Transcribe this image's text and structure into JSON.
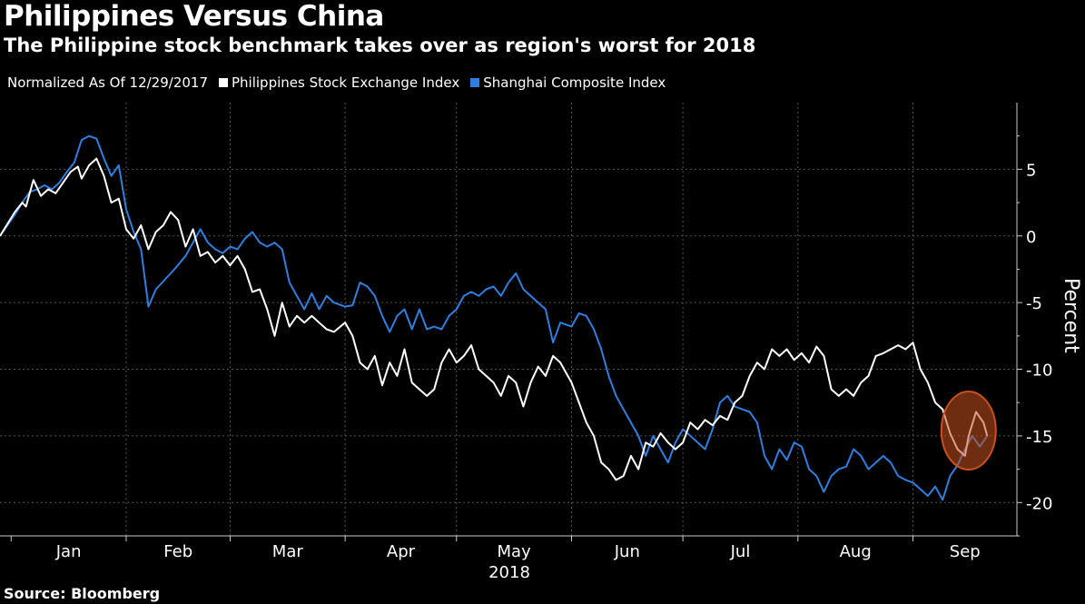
{
  "header": {
    "title": "Philippines Versus China",
    "subtitle": "The Philippine stock benchmark takes over as region's worst for 2018"
  },
  "legend": {
    "note": "Normalized As Of 12/29/2017"
  },
  "footer": {
    "source": "Source: Bloomberg"
  },
  "colors": {
    "background": "#000000",
    "philippines": "#ffffff",
    "shanghai": "#2f7fe0",
    "highlight": "#c8501f"
  },
  "chart_data": {
    "type": "line",
    "ylabel": "Percent",
    "xlabel": "2018",
    "ylim": [
      -22.5,
      10
    ],
    "yticks": [
      5,
      0,
      -5,
      -10,
      -15,
      -20
    ],
    "ytick_labels": [
      "5",
      "0",
      "-5",
      "-10",
      "-15",
      "-20"
    ],
    "xlim": [
      "2017-12-29",
      "2018-09-29"
    ],
    "month_labels": [
      "Jan",
      "Feb",
      "Mar",
      "Apr",
      "May",
      "Jun",
      "Jul",
      "Aug",
      "Sep"
    ],
    "month_starts": [
      "2018-01-01",
      "2018-02-01",
      "2018-03-01",
      "2018-04-01",
      "2018-05-01",
      "2018-06-01",
      "2018-07-01",
      "2018-08-01",
      "2018-09-01"
    ],
    "grid": true,
    "legend_position": "top-left",
    "series": [
      {
        "name": "Philippines Stock Exchange Index",
        "points": [
          [
            "2017-12-29",
            0
          ],
          [
            "2018-01-02",
            1.8
          ],
          [
            "2018-01-04",
            2.5
          ],
          [
            "2018-01-05",
            2.2
          ],
          [
            "2018-01-07",
            4.2
          ],
          [
            "2018-01-09",
            3.0
          ],
          [
            "2018-01-11",
            3.5
          ],
          [
            "2018-01-13",
            3.2
          ],
          [
            "2018-01-15",
            4.0
          ],
          [
            "2018-01-17",
            4.8
          ],
          [
            "2018-01-19",
            5.2
          ],
          [
            "2018-01-20",
            4.3
          ],
          [
            "2018-01-22",
            5.3
          ],
          [
            "2018-01-24",
            5.8
          ],
          [
            "2018-01-26",
            4.5
          ],
          [
            "2018-01-28",
            2.5
          ],
          [
            "2018-01-30",
            2.8
          ],
          [
            "2018-02-01",
            0.5
          ],
          [
            "2018-02-03",
            -0.2
          ],
          [
            "2018-02-05",
            0.8
          ],
          [
            "2018-02-07",
            -1.0
          ],
          [
            "2018-02-09",
            0.3
          ],
          [
            "2018-02-11",
            0.8
          ],
          [
            "2018-02-13",
            1.8
          ],
          [
            "2018-02-15",
            1.2
          ],
          [
            "2018-02-17",
            -0.8
          ],
          [
            "2018-02-19",
            0.5
          ],
          [
            "2018-02-21",
            -1.5
          ],
          [
            "2018-02-23",
            -1.2
          ],
          [
            "2018-02-25",
            -2.0
          ],
          [
            "2018-02-27",
            -1.5
          ],
          [
            "2018-03-01",
            -2.2
          ],
          [
            "2018-03-03",
            -1.5
          ],
          [
            "2018-03-05",
            -2.5
          ],
          [
            "2018-03-07",
            -4.2
          ],
          [
            "2018-03-09",
            -4.0
          ],
          [
            "2018-03-11",
            -5.5
          ],
          [
            "2018-03-13",
            -7.5
          ],
          [
            "2018-03-15",
            -5.0
          ],
          [
            "2018-03-17",
            -6.8
          ],
          [
            "2018-03-19",
            -6.0
          ],
          [
            "2018-03-21",
            -6.5
          ],
          [
            "2018-03-23",
            -6.0
          ],
          [
            "2018-03-25",
            -6.5
          ],
          [
            "2018-03-27",
            -7.0
          ],
          [
            "2018-03-29",
            -7.2
          ],
          [
            "2018-04-01",
            -6.5
          ],
          [
            "2018-04-03",
            -7.5
          ],
          [
            "2018-04-05",
            -9.5
          ],
          [
            "2018-04-07",
            -10.0
          ],
          [
            "2018-04-09",
            -9.0
          ],
          [
            "2018-04-11",
            -11.2
          ],
          [
            "2018-04-13",
            -9.5
          ],
          [
            "2018-04-15",
            -10.5
          ],
          [
            "2018-04-17",
            -8.5
          ],
          [
            "2018-04-19",
            -11.0
          ],
          [
            "2018-04-21",
            -11.5
          ],
          [
            "2018-04-23",
            -12.0
          ],
          [
            "2018-04-25",
            -11.5
          ],
          [
            "2018-04-27",
            -9.5
          ],
          [
            "2018-04-29",
            -8.5
          ],
          [
            "2018-05-01",
            -9.5
          ],
          [
            "2018-05-03",
            -9.0
          ],
          [
            "2018-05-05",
            -8.2
          ],
          [
            "2018-05-07",
            -10.0
          ],
          [
            "2018-05-09",
            -10.5
          ],
          [
            "2018-05-11",
            -11.0
          ],
          [
            "2018-05-13",
            -12.0
          ],
          [
            "2018-05-15",
            -10.5
          ],
          [
            "2018-05-17",
            -11.0
          ],
          [
            "2018-05-19",
            -12.8
          ],
          [
            "2018-05-21",
            -11.0
          ],
          [
            "2018-05-23",
            -9.8
          ],
          [
            "2018-05-25",
            -10.5
          ],
          [
            "2018-05-27",
            -9.0
          ],
          [
            "2018-05-29",
            -9.5
          ],
          [
            "2018-06-01",
            -11.0
          ],
          [
            "2018-06-03",
            -12.5
          ],
          [
            "2018-06-05",
            -14.0
          ],
          [
            "2018-06-07",
            -15.0
          ],
          [
            "2018-06-09",
            -17.0
          ],
          [
            "2018-06-11",
            -17.5
          ],
          [
            "2018-06-13",
            -18.3
          ],
          [
            "2018-06-15",
            -18.0
          ],
          [
            "2018-06-17",
            -16.5
          ],
          [
            "2018-06-19",
            -17.5
          ],
          [
            "2018-06-21",
            -15.5
          ],
          [
            "2018-06-23",
            -15.8
          ],
          [
            "2018-06-25",
            -14.8
          ],
          [
            "2018-06-27",
            -15.5
          ],
          [
            "2018-06-29",
            -16.0
          ],
          [
            "2018-07-01",
            -15.5
          ],
          [
            "2018-07-03",
            -14.0
          ],
          [
            "2018-07-05",
            -14.5
          ],
          [
            "2018-07-07",
            -13.8
          ],
          [
            "2018-07-09",
            -14.2
          ],
          [
            "2018-07-11",
            -13.5
          ],
          [
            "2018-07-13",
            -13.8
          ],
          [
            "2018-07-15",
            -12.5
          ],
          [
            "2018-07-17",
            -12.0
          ],
          [
            "2018-07-19",
            -10.5
          ],
          [
            "2018-07-21",
            -9.5
          ],
          [
            "2018-07-23",
            -10.0
          ],
          [
            "2018-07-25",
            -8.5
          ],
          [
            "2018-07-27",
            -9.0
          ],
          [
            "2018-07-29",
            -8.5
          ],
          [
            "2018-07-31",
            -9.3
          ],
          [
            "2018-08-02",
            -8.8
          ],
          [
            "2018-08-04",
            -9.5
          ],
          [
            "2018-08-06",
            -8.3
          ],
          [
            "2018-08-08",
            -9.0
          ],
          [
            "2018-08-10",
            -11.5
          ],
          [
            "2018-08-12",
            -12.0
          ],
          [
            "2018-08-14",
            -11.5
          ],
          [
            "2018-08-16",
            -12.0
          ],
          [
            "2018-08-18",
            -11.0
          ],
          [
            "2018-08-20",
            -10.5
          ],
          [
            "2018-08-22",
            -9.0
          ],
          [
            "2018-08-24",
            -8.8
          ],
          [
            "2018-08-26",
            -8.5
          ],
          [
            "2018-08-28",
            -8.2
          ],
          [
            "2018-08-30",
            -8.5
          ],
          [
            "2018-09-01",
            -8.0
          ],
          [
            "2018-09-03",
            -10.0
          ],
          [
            "2018-09-05",
            -11.0
          ],
          [
            "2018-09-07",
            -12.5
          ],
          [
            "2018-09-09",
            -13.0
          ],
          [
            "2018-09-11",
            -14.8
          ],
          [
            "2018-09-13",
            -16.0
          ],
          [
            "2018-09-15",
            -16.5
          ],
          [
            "2018-09-16",
            -15.0
          ],
          [
            "2018-09-18",
            -13.2
          ],
          [
            "2018-09-20",
            -14.0
          ],
          [
            "2018-09-21",
            -15.0
          ]
        ]
      },
      {
        "name": "Shanghai Composite Index",
        "points": [
          [
            "2017-12-29",
            0
          ],
          [
            "2018-01-02",
            1.6
          ],
          [
            "2018-01-04",
            2.5
          ],
          [
            "2018-01-06",
            3.3
          ],
          [
            "2018-01-08",
            3.5
          ],
          [
            "2018-01-10",
            3.8
          ],
          [
            "2018-01-12",
            3.5
          ],
          [
            "2018-01-14",
            4.0
          ],
          [
            "2018-01-16",
            4.8
          ],
          [
            "2018-01-18",
            5.5
          ],
          [
            "2018-01-20",
            7.2
          ],
          [
            "2018-01-22",
            7.5
          ],
          [
            "2018-01-24",
            7.3
          ],
          [
            "2018-01-26",
            5.8
          ],
          [
            "2018-01-28",
            4.5
          ],
          [
            "2018-01-30",
            5.3
          ],
          [
            "2018-02-01",
            2.0
          ],
          [
            "2018-02-03",
            0.3
          ],
          [
            "2018-02-05",
            -1.0
          ],
          [
            "2018-02-07",
            -5.3
          ],
          [
            "2018-02-09",
            -4.0
          ],
          [
            "2018-02-14",
            -2.5
          ],
          [
            "2018-02-17",
            -1.5
          ],
          [
            "2018-02-21",
            0.5
          ],
          [
            "2018-02-23",
            -0.5
          ],
          [
            "2018-02-25",
            -1.0
          ],
          [
            "2018-02-27",
            -1.3
          ],
          [
            "2018-03-01",
            -0.8
          ],
          [
            "2018-03-03",
            -1.0
          ],
          [
            "2018-03-05",
            -0.2
          ],
          [
            "2018-03-07",
            0.3
          ],
          [
            "2018-03-09",
            -0.5
          ],
          [
            "2018-03-11",
            -0.8
          ],
          [
            "2018-03-13",
            -0.5
          ],
          [
            "2018-03-15",
            -1.0
          ],
          [
            "2018-03-17",
            -3.5
          ],
          [
            "2018-03-19",
            -4.5
          ],
          [
            "2018-03-21",
            -5.5
          ],
          [
            "2018-03-23",
            -4.3
          ],
          [
            "2018-03-25",
            -5.5
          ],
          [
            "2018-03-27",
            -4.5
          ],
          [
            "2018-03-29",
            -5.0
          ],
          [
            "2018-04-01",
            -5.3
          ],
          [
            "2018-04-03",
            -5.2
          ],
          [
            "2018-04-05",
            -3.5
          ],
          [
            "2018-04-07",
            -3.8
          ],
          [
            "2018-04-09",
            -4.5
          ],
          [
            "2018-04-11",
            -6.0
          ],
          [
            "2018-04-13",
            -7.2
          ],
          [
            "2018-04-15",
            -6.0
          ],
          [
            "2018-04-17",
            -5.5
          ],
          [
            "2018-04-19",
            -7.0
          ],
          [
            "2018-04-21",
            -5.5
          ],
          [
            "2018-04-23",
            -7.0
          ],
          [
            "2018-04-25",
            -6.8
          ],
          [
            "2018-04-27",
            -7.0
          ],
          [
            "2018-04-29",
            -6.0
          ],
          [
            "2018-05-01",
            -5.5
          ],
          [
            "2018-05-03",
            -4.5
          ],
          [
            "2018-05-05",
            -4.2
          ],
          [
            "2018-05-07",
            -4.5
          ],
          [
            "2018-05-09",
            -4.0
          ],
          [
            "2018-05-11",
            -3.8
          ],
          [
            "2018-05-13",
            -4.5
          ],
          [
            "2018-05-15",
            -3.5
          ],
          [
            "2018-05-17",
            -2.8
          ],
          [
            "2018-05-19",
            -4.0
          ],
          [
            "2018-05-21",
            -4.5
          ],
          [
            "2018-05-23",
            -5.0
          ],
          [
            "2018-05-25",
            -5.5
          ],
          [
            "2018-05-27",
            -8.0
          ],
          [
            "2018-05-29",
            -6.5
          ],
          [
            "2018-06-01",
            -6.8
          ],
          [
            "2018-06-03",
            -5.8
          ],
          [
            "2018-06-05",
            -6.0
          ],
          [
            "2018-06-07",
            -7.0
          ],
          [
            "2018-06-09",
            -8.5
          ],
          [
            "2018-06-11",
            -10.5
          ],
          [
            "2018-06-13",
            -12.0
          ],
          [
            "2018-06-15",
            -13.0
          ],
          [
            "2018-06-17",
            -14.0
          ],
          [
            "2018-06-19",
            -15.0
          ],
          [
            "2018-06-21",
            -16.5
          ],
          [
            "2018-06-23",
            -15.0
          ],
          [
            "2018-06-25",
            -16.0
          ],
          [
            "2018-06-27",
            -17.0
          ],
          [
            "2018-06-29",
            -15.5
          ],
          [
            "2018-07-01",
            -14.5
          ],
          [
            "2018-07-03",
            -15.0
          ],
          [
            "2018-07-05",
            -15.5
          ],
          [
            "2018-07-07",
            -16.0
          ],
          [
            "2018-07-09",
            -14.5
          ],
          [
            "2018-07-11",
            -12.5
          ],
          [
            "2018-07-13",
            -12.0
          ],
          [
            "2018-07-15",
            -12.8
          ],
          [
            "2018-07-17",
            -13.0
          ],
          [
            "2018-07-19",
            -13.2
          ],
          [
            "2018-07-21",
            -14.0
          ],
          [
            "2018-07-23",
            -16.5
          ],
          [
            "2018-07-25",
            -17.5
          ],
          [
            "2018-07-27",
            -16.0
          ],
          [
            "2018-07-29",
            -16.8
          ],
          [
            "2018-07-31",
            -15.5
          ],
          [
            "2018-08-02",
            -15.8
          ],
          [
            "2018-08-04",
            -17.5
          ],
          [
            "2018-08-06",
            -18.0
          ],
          [
            "2018-08-08",
            -19.2
          ],
          [
            "2018-08-10",
            -18.0
          ],
          [
            "2018-08-12",
            -17.5
          ],
          [
            "2018-08-14",
            -17.3
          ],
          [
            "2018-08-16",
            -16.0
          ],
          [
            "2018-08-18",
            -16.5
          ],
          [
            "2018-08-20",
            -17.5
          ],
          [
            "2018-08-22",
            -17.0
          ],
          [
            "2018-08-24",
            -16.5
          ],
          [
            "2018-08-26",
            -17.0
          ],
          [
            "2018-08-28",
            -18.0
          ],
          [
            "2018-08-30",
            -18.3
          ],
          [
            "2018-09-01",
            -18.5
          ],
          [
            "2018-09-03",
            -19.0
          ],
          [
            "2018-09-05",
            -19.5
          ],
          [
            "2018-09-07",
            -18.8
          ],
          [
            "2018-09-09",
            -19.8
          ],
          [
            "2018-09-11",
            -18.0
          ],
          [
            "2018-09-13",
            -17.2
          ],
          [
            "2018-09-15",
            -16.0
          ],
          [
            "2018-09-17",
            -15.0
          ],
          [
            "2018-09-19",
            -15.8
          ],
          [
            "2018-09-21",
            -15.0
          ]
        ]
      }
    ]
  }
}
